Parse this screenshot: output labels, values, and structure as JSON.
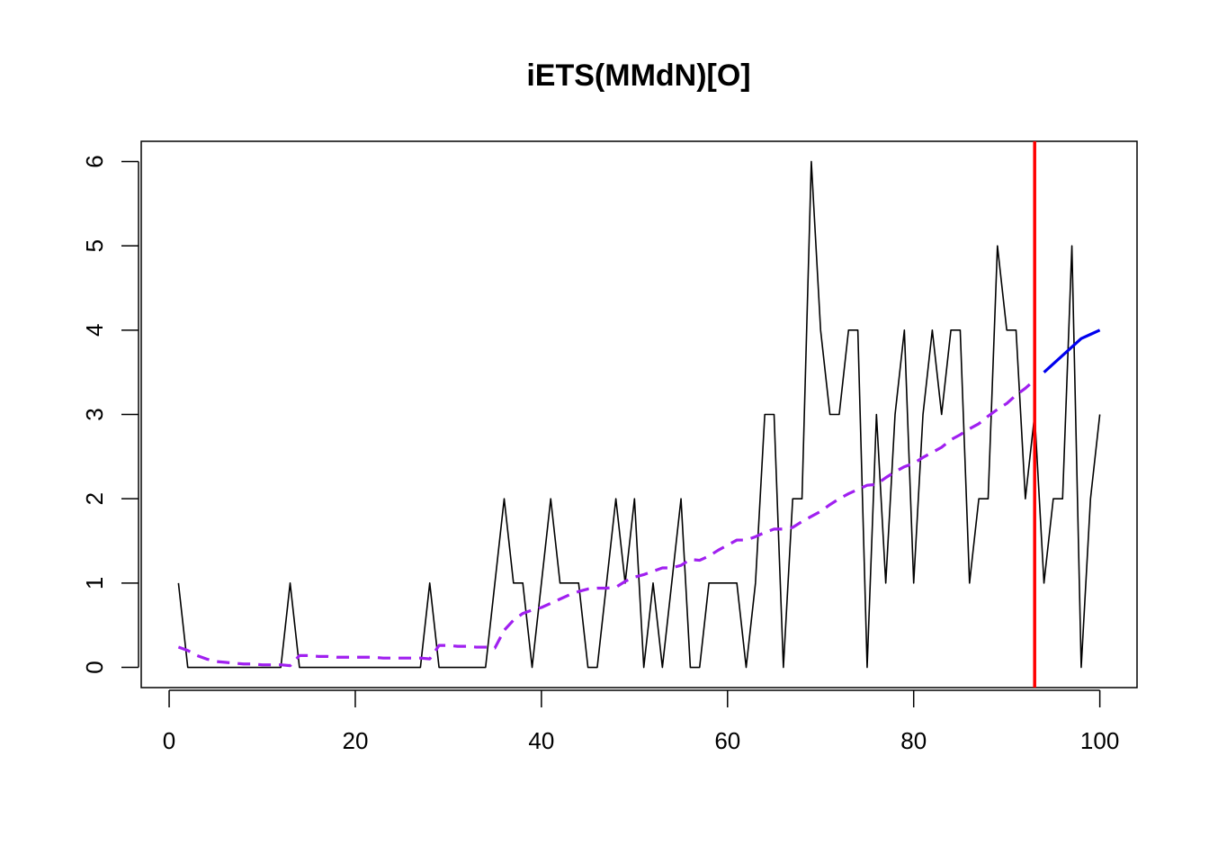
{
  "chart_data": {
    "type": "line",
    "title": "iETS(MMdN)[O]",
    "xlabel": "",
    "ylabel": "",
    "xlim": [
      -3,
      104
    ],
    "ylim": [
      -0.24,
      6.24
    ],
    "x_ticks": [
      0,
      20,
      40,
      60,
      80,
      100
    ],
    "y_ticks": [
      0,
      1,
      2,
      3,
      4,
      5,
      6
    ],
    "grid": false,
    "legend": "none",
    "vertical_line": {
      "x": 93,
      "color": "#ff0000"
    },
    "series": [
      {
        "style": "solid",
        "color": "#000000",
        "x": [
          1,
          2,
          3,
          4,
          5,
          6,
          7,
          8,
          9,
          10,
          11,
          12,
          13,
          14,
          15,
          16,
          17,
          18,
          19,
          20,
          21,
          22,
          23,
          24,
          25,
          26,
          27,
          28,
          29,
          30,
          31,
          32,
          33,
          34,
          35,
          36,
          37,
          38,
          39,
          40,
          41,
          42,
          43,
          44,
          45,
          46,
          47,
          48,
          49,
          50,
          51,
          52,
          53,
          54,
          55,
          56,
          57,
          58,
          59,
          60,
          61,
          62,
          63,
          64,
          65,
          66,
          67,
          68,
          69,
          70,
          71,
          72,
          73,
          74,
          75,
          76,
          77,
          78,
          79,
          80,
          81,
          82,
          83,
          84,
          85,
          86,
          87,
          88,
          89,
          90,
          91,
          92,
          93,
          94,
          95,
          96,
          97,
          98,
          99,
          100
        ],
        "values": [
          1,
          0,
          0,
          0,
          0,
          0,
          0,
          0,
          0,
          0,
          0,
          0,
          1,
          0,
          0,
          0,
          0,
          0,
          0,
          0,
          0,
          0,
          0,
          0,
          0,
          0,
          0,
          1,
          0,
          0,
          0,
          0,
          0,
          0,
          1,
          2,
          1,
          1,
          0,
          1,
          2,
          1,
          1,
          1,
          0,
          0,
          1,
          2,
          1,
          2,
          0,
          1,
          0,
          1,
          2,
          0,
          0,
          1,
          1,
          1,
          1,
          0,
          1,
          3,
          3,
          0,
          2,
          2,
          6,
          4,
          3,
          3,
          4,
          4,
          0,
          3,
          1,
          3,
          4,
          1,
          3,
          4,
          3,
          4,
          4,
          1,
          2,
          2,
          5,
          4,
          4,
          2,
          3,
          1,
          2,
          2,
          5,
          0,
          2,
          3
        ]
      },
      {
        "style": "dashed",
        "color": "#a020f0",
        "x": [
          1,
          2,
          3,
          4,
          5,
          6,
          7,
          8,
          9,
          10,
          11,
          12,
          13,
          14,
          15,
          16,
          17,
          18,
          19,
          20,
          21,
          22,
          23,
          24,
          25,
          26,
          27,
          28,
          29,
          30,
          31,
          32,
          33,
          34,
          35,
          36,
          37,
          38,
          39,
          40,
          41,
          42,
          43,
          44,
          45,
          46,
          47,
          48,
          49,
          50,
          51,
          52,
          53,
          54,
          55,
          56,
          57,
          58,
          59,
          60,
          61,
          62,
          63,
          64,
          65,
          66,
          67,
          68,
          69,
          70,
          71,
          72,
          73,
          74,
          75,
          76,
          77,
          78,
          79,
          80,
          81,
          82,
          83,
          84,
          85,
          86,
          87,
          88,
          89,
          90,
          91,
          92,
          93
        ],
        "values": [
          0.24,
          0.2,
          0.14,
          0.1,
          0.07,
          0.06,
          0.05,
          0.04,
          0.04,
          0.03,
          0.03,
          0.03,
          0.02,
          0.14,
          0.14,
          0.13,
          0.13,
          0.12,
          0.12,
          0.12,
          0.12,
          0.12,
          0.11,
          0.11,
          0.11,
          0.11,
          0.11,
          0.1,
          0.26,
          0.26,
          0.25,
          0.25,
          0.24,
          0.24,
          0.23,
          0.44,
          0.56,
          0.64,
          0.68,
          0.71,
          0.76,
          0.81,
          0.86,
          0.9,
          0.93,
          0.94,
          0.94,
          0.95,
          1.02,
          1.07,
          1.1,
          1.14,
          1.18,
          1.18,
          1.21,
          1.28,
          1.27,
          1.32,
          1.39,
          1.45,
          1.51,
          1.51,
          1.55,
          1.6,
          1.64,
          1.64,
          1.66,
          1.73,
          1.79,
          1.85,
          1.93,
          2.0,
          2.06,
          2.11,
          2.16,
          2.17,
          2.25,
          2.32,
          2.38,
          2.42,
          2.49,
          2.55,
          2.61,
          2.7,
          2.76,
          2.83,
          2.89,
          2.98,
          3.06,
          3.13,
          3.23,
          3.31,
          3.41
        ]
      },
      {
        "style": "solid",
        "color": "#0000ee",
        "x": [
          94,
          95,
          96,
          97,
          98,
          99,
          100
        ],
        "values": [
          3.5,
          3.6,
          3.7,
          3.8,
          3.9,
          3.95,
          4.0
        ]
      }
    ]
  }
}
